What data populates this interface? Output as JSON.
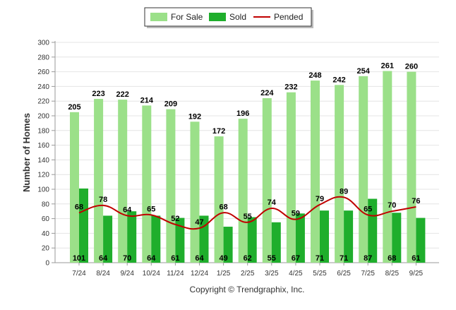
{
  "chart_data": {
    "type": "bar",
    "title": "",
    "xlabel": "",
    "ylabel": "Number of Homes",
    "ylim": [
      0,
      300
    ],
    "yticks": [
      0,
      20,
      40,
      60,
      80,
      100,
      120,
      140,
      160,
      180,
      200,
      220,
      240,
      260,
      280,
      300
    ],
    "grid": true,
    "legend_position": "top-center",
    "categories": [
      "7/24",
      "8/24",
      "9/24",
      "10/24",
      "11/24",
      "12/24",
      "1/25",
      "2/25",
      "3/25",
      "4/25",
      "5/25",
      "6/25",
      "7/25",
      "8/25",
      "9/25"
    ],
    "series": [
      {
        "name": "For Sale",
        "kind": "bar",
        "color": "#9be089",
        "values": [
          205,
          223,
          222,
          214,
          209,
          192,
          172,
          196,
          224,
          232,
          248,
          242,
          254,
          261,
          260
        ]
      },
      {
        "name": "Sold",
        "kind": "bar",
        "color": "#1fae2c",
        "values": [
          101,
          64,
          70,
          64,
          61,
          64,
          49,
          62,
          55,
          67,
          71,
          71,
          87,
          68,
          61
        ]
      },
      {
        "name": "Pended",
        "kind": "line",
        "color": "#c00000",
        "values": [
          68,
          78,
          64,
          65,
          52,
          47,
          68,
          55,
          74,
          59,
          79,
          89,
          65,
          70,
          76
        ]
      }
    ]
  },
  "footer": {
    "copyright": "Copyright © Trendgraphix, Inc."
  }
}
